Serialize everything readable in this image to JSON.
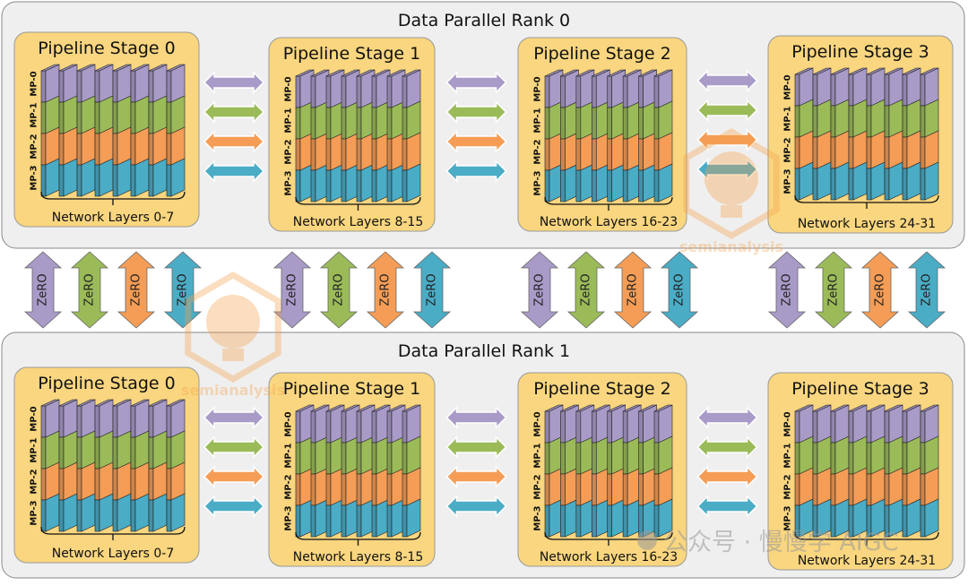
{
  "colors": {
    "mp0": "#a99bc8",
    "mp1": "#9bbb59",
    "mp2": "#f59d56",
    "mp3": "#4bacc6",
    "stage_fill": "#f9d67f",
    "rank_fill": "#efefef",
    "watermark": "#f5a04a"
  },
  "mp_labels": [
    "MP-0",
    "MP-1",
    "MP-2",
    "MP-3"
  ],
  "zero_label": "ZeRO",
  "ranks": [
    {
      "title": "Data Parallel Rank 0",
      "stages": [
        {
          "title": "Pipeline Stage 0",
          "layers": "Network Layers 0-7"
        },
        {
          "title": "Pipeline Stage 1",
          "layers": "Network Layers 8-15"
        },
        {
          "title": "Pipeline Stage 2",
          "layers": "Network Layers 16-23"
        },
        {
          "title": "Pipeline Stage 3",
          "layers": "Network Layers 24-31"
        }
      ]
    },
    {
      "title": "Data Parallel Rank 1",
      "stages": [
        {
          "title": "Pipeline Stage 0",
          "layers": "Network Layers 0-7"
        },
        {
          "title": "Pipeline Stage 1",
          "layers": "Network Layers 8-15"
        },
        {
          "title": "Pipeline Stage 2",
          "layers": "Network Layers 16-23"
        },
        {
          "title": "Pipeline Stage 3",
          "layers": "Network Layers 24-31"
        }
      ]
    }
  ],
  "watermarks": {
    "logo_text": "semianalysis",
    "wechat_text": "公众号 · 慢慢学 AIGC"
  }
}
